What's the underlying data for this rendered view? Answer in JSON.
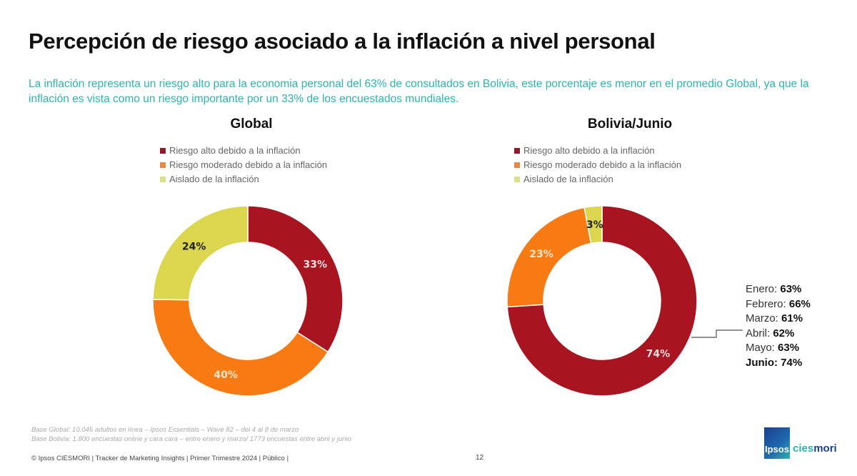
{
  "title": "Percepción de riesgo asociado a la inflación a nivel personal",
  "subtitle": "La inflación representa un riesgo alto para la economia personal del 63% de consultados en Bolivia, este porcentaje es menor en el promedio Global, ya que la inflación es vista como un riesgo importante por un 33% de los encuestados mundiales.",
  "colors": {
    "alto": "#a8141f",
    "moderado": "#f77a12",
    "aislado": "#dcd64e",
    "accent": "#2bb5ac"
  },
  "legend": [
    "Riesgo alto debido a la inflación",
    "Riesgo moderado debido a la inflación",
    "Aislado de la inflación"
  ],
  "chart_data": [
    {
      "type": "pie",
      "title": "Global",
      "categories": [
        "Riesgo alto debido a la inflación",
        "Riesgo moderado debido a la inflación",
        "Aislado de la inflación"
      ],
      "values": [
        33,
        40,
        24
      ],
      "labels": [
        "33%",
        "40%",
        "24%"
      ],
      "donut": true,
      "legend_position": "top"
    },
    {
      "type": "pie",
      "title": "Bolivia/Junio",
      "categories": [
        "Riesgo alto debido a la inflación",
        "Riesgo moderado debido a la inflación",
        "Aislado de la inflación"
      ],
      "values": [
        74,
        23,
        3
      ],
      "labels": [
        "74%",
        "23%",
        "3%"
      ],
      "donut": true,
      "legend_position": "top",
      "annotation": {
        "months": [
          {
            "label": "Enero:",
            "value": "63%"
          },
          {
            "label": "Febrero:",
            "value": "66%"
          },
          {
            "label": "Marzo:",
            "value": "61%"
          },
          {
            "label": "Abril:",
            "value": "62%"
          },
          {
            "label": "Mayo:",
            "value": "63%"
          },
          {
            "label": "Junio:",
            "value": "74%"
          }
        ]
      }
    }
  ],
  "base_notes": [
    "Base Global: 10.045 adultos en línea – Ipsos Essentials – Wave 82 – del 4 al 8 de marzo",
    "Base Bolivia: 1.800 encuestas online y cara cara – entre enero y marzo/ 1773 encuestas entre abril y junio"
  ],
  "footer": "© Ipsos CIESMORI | Tracker de Marketing Insights | Primer Trimestre 2024 | Público |",
  "page_number": "12",
  "logo": {
    "left": "Ipsos",
    "right_a": "cies",
    "right_b": "mori"
  }
}
